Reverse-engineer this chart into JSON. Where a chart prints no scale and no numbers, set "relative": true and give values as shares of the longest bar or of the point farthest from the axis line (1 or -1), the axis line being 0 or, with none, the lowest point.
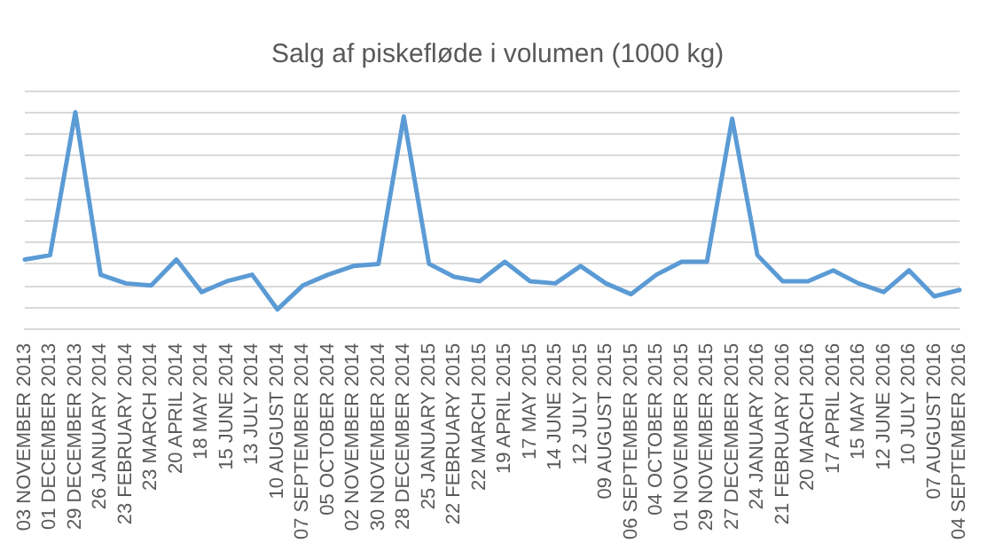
{
  "chart_data": {
    "type": "line",
    "title": "Salg af piskefløde i volumen (1000 kg)",
    "relative": true,
    "grid": "y",
    "marker": "none",
    "line_style": "solid",
    "categories": [
      "03 NOVEMBER 2013",
      "01 DECEMBER 2013",
      "29 DECEMBER 2013",
      "26 JANUARY 2014",
      "23 FEBRUARY 2014",
      "23 MARCH 2014",
      "20 APRIL 2014",
      "18 MAY 2014",
      "15 JUNE 2014",
      "13 JULY 2014",
      "10 AUGUST 2014",
      "07 SEPTEMBER 2014",
      "05 OCTOBER 2014",
      "02 NOVEMBER 2014",
      "30 NOVEMBER 2014",
      "28 DECEMBER 2014",
      "25 JANUARY 2015",
      "22 FEBRUARY 2015",
      "22 MARCH 2015",
      "19 APRIL 2015",
      "17 MAY 2015",
      "14 JUNE 2015",
      "12 JULY 2015",
      "09 AUGUST 2015",
      "06 SEPTEMBER 2015",
      "04 OCTOBER 2015",
      "01 NOVEMBER 2015",
      "29 NOVEMBER 2015",
      "27 DECEMBER 2015",
      "24 JANUARY 2016",
      "21 FEBRUARY 2016",
      "20 MARCH 2016",
      "17 APRIL 2016",
      "15 MAY 2016",
      "12 JUNE 2016",
      "10 JULY 2016",
      "07 AUGUST 2016",
      "04 SEPTEMBER 2016"
    ],
    "series": [
      {
        "color": "#5b9bd5",
        "values": [
          0.32,
          0.34,
          1,
          0.25,
          0.21,
          0.2,
          0.32,
          0.17,
          0.22,
          0.25,
          0.09,
          0.2,
          0.25,
          0.29,
          0.3,
          0.98,
          0.3,
          0.24,
          0.22,
          0.31,
          0.22,
          0.21,
          0.29,
          0.21,
          0.16,
          0.25,
          0.31,
          0.31,
          0.97,
          0.34,
          0.22,
          0.22,
          0.27,
          0.21,
          0.17,
          0.27,
          0.15,
          0.18
        ]
      }
    ]
  }
}
